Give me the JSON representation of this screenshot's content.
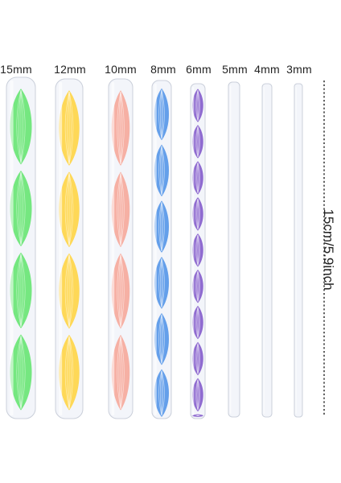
{
  "rods": [
    {
      "label": "15mm",
      "color": "#5ee46a",
      "swirl": true
    },
    {
      "label": "12mm",
      "color": "#ffd23a",
      "swirl": true
    },
    {
      "label": "10mm",
      "color": "#f6a394",
      "swirl": true
    },
    {
      "label": "8mm",
      "color": "#4a8fe6",
      "swirl": true
    },
    {
      "label": "6mm",
      "color": "#7c52c8",
      "swirl": true
    },
    {
      "label": "5mm",
      "color": "#eef0f6",
      "swirl": false
    },
    {
      "label": "4mm",
      "color": "#eef0f6",
      "swirl": false
    },
    {
      "label": "3mm",
      "color": "#eef0f6",
      "swirl": false
    }
  ],
  "dimension": {
    "text": "15cm/5.9inch"
  }
}
